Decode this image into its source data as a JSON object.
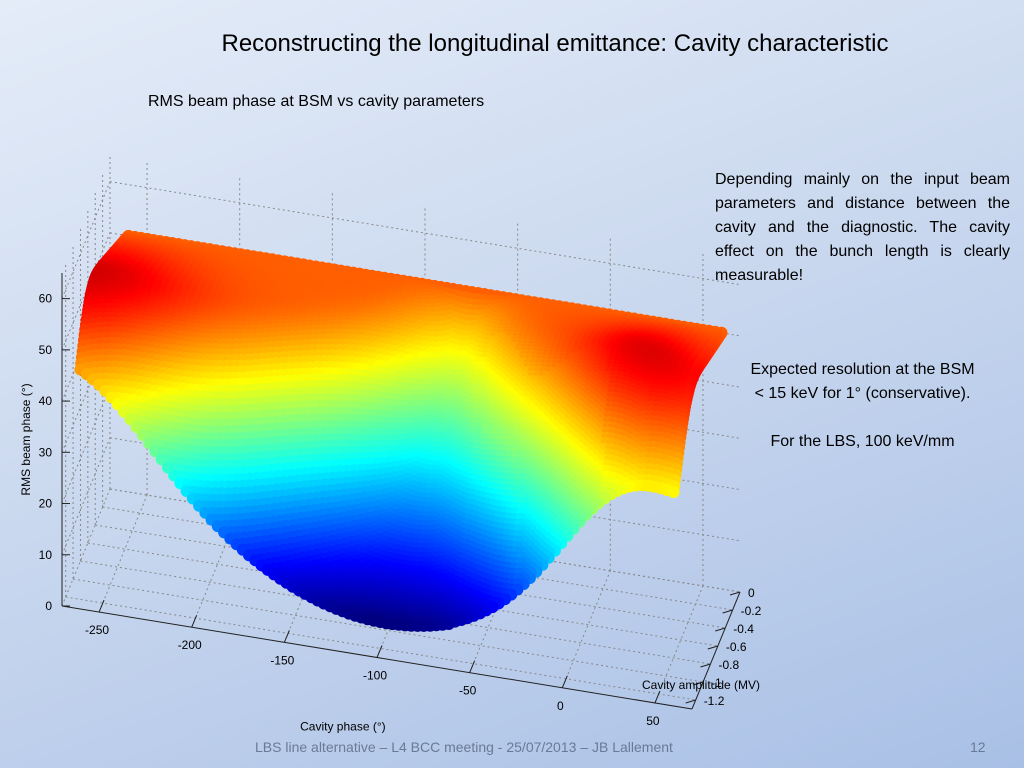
{
  "slide": {
    "title": "Reconstructing the longitudinal emittance: Cavity characteristic",
    "paragraph": "Depending mainly on the input beam parameters and distance between the cavity and the diagnostic. The cavity effect on the bunch length is clearly measurable!",
    "resolution_line1": "Expected resolution at the BSM",
    "resolution_line2": "< 15 keV for 1° (conservative).",
    "lbs_line": "For the LBS, 100 keV/mm",
    "footer": "LBS line alternative  – L4 BCC meeting - 25/07/2013 – JB Lallement",
    "page_number": "12"
  },
  "chart_data": {
    "type": "surface3d",
    "title": "RMS beam phase at BSM vs cavity parameters",
    "xlabel": "Cavity phase (°)",
    "ylabel": "Cavity amplitude (MV)",
    "zlabel": "RMS beam phase (°)",
    "x_ticks": [
      "-250",
      "-200",
      "-150",
      "-100",
      "-50",
      "0",
      "50"
    ],
    "y_ticks": [
      "0",
      "-0.2",
      "-0.4",
      "-0.6",
      "-0.8",
      "-1",
      "-1.2"
    ],
    "z_ticks": [
      "0",
      "10",
      "20",
      "30",
      "40",
      "50",
      "60"
    ],
    "xlim": [
      -270,
      70
    ],
    "ylim": [
      -1.3,
      0
    ],
    "zlim": [
      0,
      65
    ],
    "grid": true,
    "colormap": "jet",
    "surface": {
      "phase_range": [
        -260,
        60
      ],
      "amplitude_range": [
        -1.3,
        0
      ],
      "z_at_zero_amplitude": 50,
      "z_range": [
        7,
        62
      ]
    }
  }
}
